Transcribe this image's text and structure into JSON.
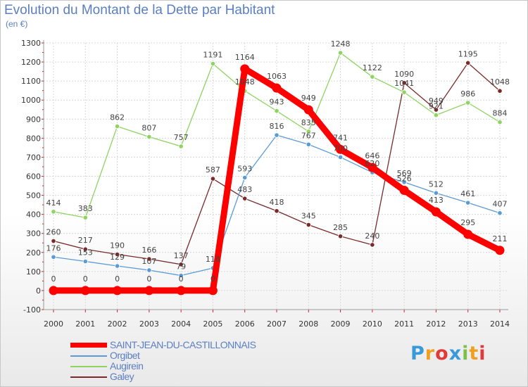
{
  "chart_data": {
    "type": "line",
    "title": "Evolution du Montant de la Dette par Habitant",
    "ylabel": "(en €)",
    "xlabel": "",
    "x": [
      "2000",
      "2001",
      "2002",
      "2003",
      "2004",
      "2005",
      "2006",
      "2007",
      "2008",
      "2009",
      "2010",
      "2011",
      "2012",
      "2013",
      "2014"
    ],
    "ylim": [
      -100,
      1300
    ],
    "yticks": [
      -100,
      0,
      100,
      200,
      300,
      400,
      500,
      600,
      700,
      800,
      900,
      1000,
      1100,
      1200,
      1300
    ],
    "grid": true,
    "legend_position": "bottom-left",
    "series": [
      {
        "name": "SAINT-JEAN-DU-CASTILLONNAIS",
        "color": "#ff0000",
        "values": [
          0,
          0,
          0,
          0,
          0,
          0,
          1164,
          1063,
          949,
          741,
          646,
          526,
          413,
          295,
          211
        ],
        "labels": [
          "0",
          "0",
          "0",
          "0",
          "0",
          "0",
          "1164",
          "1063",
          "949",
          "741",
          "646",
          "526",
          "413",
          "295",
          "211"
        ]
      },
      {
        "name": "Orgibet",
        "color": "#5b9bd5",
        "values": [
          176,
          153,
          129,
          107,
          79,
          118,
          593,
          816,
          767,
          700,
          620,
          569,
          512,
          461,
          407
        ],
        "labels": [
          "176",
          "153",
          "129",
          "107",
          "79",
          "118",
          "593",
          "816",
          "767",
          "700",
          "620",
          "569",
          "512",
          "461",
          "407"
        ]
      },
      {
        "name": "Augirein",
        "color": "#8ed460",
        "values": [
          414,
          383,
          862,
          807,
          757,
          1191,
          1048,
          943,
          835,
          1248,
          1122,
          1041,
          921,
          986,
          884
        ],
        "labels": [
          "414",
          "383",
          "862",
          "807",
          "757",
          "1191",
          "1048",
          "943",
          "835",
          "1248",
          "1122",
          "1041",
          "921",
          "986",
          "884"
        ]
      },
      {
        "name": "Galey",
        "color": "#7a2a2a",
        "values": [
          260,
          217,
          190,
          166,
          137,
          587,
          483,
          418,
          345,
          285,
          240,
          1090,
          949,
          1195,
          1048
        ],
        "labels": [
          "260",
          "217",
          "190",
          "166",
          "137",
          "587",
          "483",
          "418",
          "345",
          "285",
          "240",
          "1090",
          "949",
          "1195",
          "1048"
        ]
      }
    ]
  },
  "logo": {
    "text": "Proxiti",
    "letters": [
      "P",
      "r",
      "o",
      "x",
      "i",
      "t",
      "i"
    ],
    "colors": [
      "#3a9ad9",
      "#f0a020",
      "#e03a3a",
      "#3a9ad9",
      "#7cc04a",
      "#f0a020",
      "#e03a3a"
    ]
  }
}
